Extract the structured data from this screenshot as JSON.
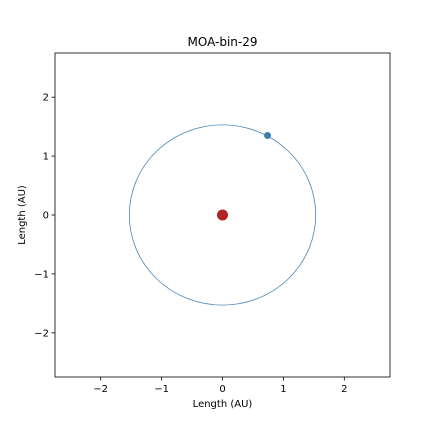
{
  "chart_data": {
    "type": "scatter",
    "title": "MOA-bin-29",
    "xlabel": "Length (AU)",
    "ylabel": "Length (AU)",
    "xlim": [
      -2.75,
      2.75
    ],
    "ylim": [
      -2.75,
      2.75
    ],
    "xticks": [
      -2,
      -1,
      0,
      1,
      2
    ],
    "yticks": [
      -2,
      -1,
      0,
      1,
      2
    ],
    "xtick_labels": [
      "−2",
      "−1",
      "0",
      "1",
      "2"
    ],
    "ytick_labels": [
      "−2",
      "−1",
      "0",
      "1",
      "2"
    ],
    "grid": false,
    "orbit": {
      "center": [
        0,
        0
      ],
      "radius": 1.53,
      "color": "#4a86b8"
    },
    "series": [
      {
        "role": "host-star",
        "x": [
          0
        ],
        "y": [
          0
        ],
        "color": "#b22222"
      },
      {
        "role": "planet",
        "x": [
          0.74
        ],
        "y": [
          1.35
        ],
        "color": "#3f7fb0"
      }
    ]
  }
}
